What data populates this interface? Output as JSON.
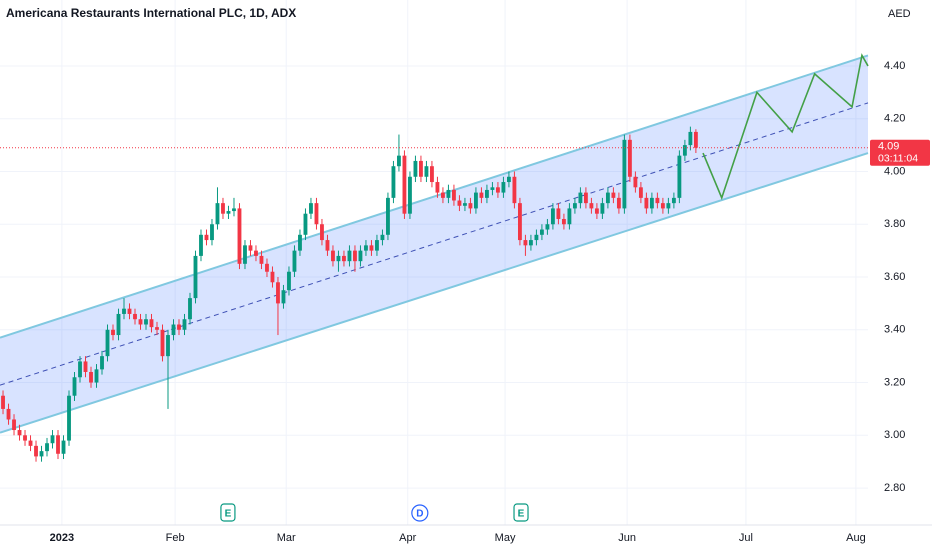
{
  "chart_data": {
    "type": "candlestick",
    "title": "Americana Restaurants International PLC, 1D, ADX",
    "currency": "AED",
    "up_color": "#089981",
    "down_color": "#f23645",
    "open": [
      3.15,
      3.1,
      3.06,
      3.02,
      3.0,
      2.98,
      2.96,
      2.92,
      2.94,
      2.97,
      3.0,
      2.93,
      2.98,
      3.15,
      3.22,
      3.28,
      3.24,
      3.2,
      3.25,
      3.3,
      3.4,
      3.38,
      3.46,
      3.48,
      3.46,
      3.44,
      3.42,
      3.44,
      3.41,
      3.4,
      3.3,
      3.38,
      3.42,
      3.4,
      3.44,
      3.52,
      3.68,
      3.76,
      3.74,
      3.8,
      3.88,
      3.84,
      3.85,
      3.86,
      3.65,
      3.72,
      3.7,
      3.68,
      3.65,
      3.62,
      3.58,
      3.5,
      3.55,
      3.62,
      3.7,
      3.76,
      3.84,
      3.88,
      3.8,
      3.74,
      3.7,
      3.66,
      3.68,
      3.66,
      3.7,
      3.66,
      3.7,
      3.72,
      3.7,
      3.74,
      3.76,
      3.9,
      4.02,
      4.06,
      3.84,
      3.98,
      4.04,
      3.98,
      4.02,
      3.96,
      3.92,
      3.9,
      3.93,
      3.89,
      3.87,
      3.88,
      3.86,
      3.92,
      3.9,
      3.93,
      3.94,
      3.92,
      3.96,
      3.98,
      3.88,
      3.74,
      3.72,
      3.74,
      3.76,
      3.78,
      3.8,
      3.86,
      3.82,
      3.8,
      3.86,
      3.88,
      3.92,
      3.88,
      3.86,
      3.84,
      3.88,
      3.92,
      3.9,
      3.86,
      4.12,
      3.98,
      3.94,
      3.9,
      3.86,
      3.9,
      3.88,
      3.86,
      3.88,
      3.9,
      4.06,
      4.1,
      4.15
    ],
    "high": [
      3.17,
      3.12,
      3.08,
      3.04,
      3.02,
      3.0,
      2.98,
      2.96,
      2.99,
      3.02,
      3.02,
      3.0,
      3.17,
      3.24,
      3.3,
      3.3,
      3.26,
      3.27,
      3.32,
      3.42,
      3.42,
      3.48,
      3.52,
      3.5,
      3.48,
      3.46,
      3.46,
      3.46,
      3.43,
      3.42,
      3.4,
      3.44,
      3.44,
      3.46,
      3.54,
      3.7,
      3.78,
      3.78,
      3.82,
      3.94,
      3.9,
      3.87,
      3.9,
      3.88,
      3.74,
      3.74,
      3.72,
      3.7,
      3.67,
      3.64,
      3.6,
      3.57,
      3.64,
      3.72,
      3.78,
      3.86,
      3.9,
      3.9,
      3.82,
      3.76,
      3.72,
      3.7,
      3.7,
      3.72,
      3.72,
      3.72,
      3.74,
      3.74,
      3.76,
      3.78,
      3.92,
      4.04,
      4.14,
      4.08,
      4.0,
      4.06,
      4.06,
      4.04,
      4.04,
      3.98,
      3.94,
      3.95,
      3.95,
      3.91,
      3.9,
      3.9,
      3.94,
      3.94,
      3.95,
      3.96,
      3.96,
      3.98,
      4.0,
      4.0,
      3.9,
      3.76,
      3.76,
      3.78,
      3.8,
      3.82,
      3.88,
      3.88,
      3.84,
      3.88,
      3.9,
      3.94,
      3.94,
      3.9,
      3.88,
      3.9,
      3.94,
      3.94,
      3.92,
      4.14,
      4.14,
      4.0,
      3.96,
      3.92,
      3.92,
      3.92,
      3.9,
      3.9,
      3.92,
      4.08,
      4.12,
      4.17,
      4.16
    ],
    "low": [
      3.08,
      3.04,
      3.0,
      2.98,
      2.96,
      2.94,
      2.9,
      2.9,
      2.92,
      2.95,
      2.91,
      2.91,
      2.96,
      3.13,
      3.2,
      3.22,
      3.18,
      3.18,
      3.23,
      3.28,
      3.36,
      3.36,
      3.44,
      3.44,
      3.42,
      3.4,
      3.4,
      3.39,
      3.38,
      3.28,
      3.1,
      3.36,
      3.38,
      3.38,
      3.42,
      3.5,
      3.66,
      3.72,
      3.72,
      3.78,
      3.82,
      3.82,
      3.83,
      3.63,
      3.63,
      3.68,
      3.66,
      3.63,
      3.6,
      3.56,
      3.38,
      3.48,
      3.53,
      3.6,
      3.68,
      3.74,
      3.82,
      3.78,
      3.72,
      3.68,
      3.64,
      3.62,
      3.64,
      3.64,
      3.62,
      3.64,
      3.68,
      3.68,
      3.68,
      3.72,
      3.74,
      3.88,
      4.0,
      3.82,
      3.82,
      3.96,
      3.96,
      3.96,
      3.94,
      3.9,
      3.88,
      3.88,
      3.87,
      3.85,
      3.85,
      3.84,
      3.84,
      3.88,
      3.88,
      3.91,
      3.9,
      3.9,
      3.94,
      3.86,
      3.72,
      3.68,
      3.7,
      3.72,
      3.74,
      3.76,
      3.78,
      3.8,
      3.78,
      3.78,
      3.84,
      3.86,
      3.86,
      3.84,
      3.82,
      3.82,
      3.86,
      3.88,
      3.84,
      3.84,
      3.96,
      3.92,
      3.88,
      3.84,
      3.84,
      3.86,
      3.84,
      3.84,
      3.86,
      3.88,
      4.04,
      4.08,
      4.07
    ],
    "close": [
      3.1,
      3.06,
      3.02,
      3.0,
      2.98,
      2.96,
      2.92,
      2.94,
      2.97,
      3.0,
      2.93,
      2.98,
      3.15,
      3.22,
      3.28,
      3.24,
      3.2,
      3.25,
      3.3,
      3.4,
      3.38,
      3.46,
      3.48,
      3.46,
      3.44,
      3.42,
      3.44,
      3.41,
      3.4,
      3.3,
      3.38,
      3.42,
      3.4,
      3.44,
      3.52,
      3.68,
      3.76,
      3.74,
      3.8,
      3.88,
      3.84,
      3.85,
      3.86,
      3.65,
      3.72,
      3.7,
      3.68,
      3.65,
      3.62,
      3.58,
      3.5,
      3.55,
      3.62,
      3.7,
      3.76,
      3.84,
      3.88,
      3.8,
      3.74,
      3.7,
      3.66,
      3.68,
      3.66,
      3.7,
      3.66,
      3.7,
      3.72,
      3.7,
      3.74,
      3.76,
      3.9,
      4.02,
      4.06,
      3.84,
      3.98,
      4.04,
      3.98,
      4.02,
      3.96,
      3.92,
      3.9,
      3.93,
      3.89,
      3.87,
      3.88,
      3.86,
      3.92,
      3.9,
      3.93,
      3.94,
      3.92,
      3.96,
      3.98,
      3.88,
      3.74,
      3.72,
      3.74,
      3.76,
      3.78,
      3.8,
      3.86,
      3.82,
      3.8,
      3.86,
      3.88,
      3.92,
      3.88,
      3.86,
      3.84,
      3.88,
      3.92,
      3.9,
      3.86,
      4.12,
      3.98,
      3.94,
      3.9,
      3.86,
      3.9,
      3.88,
      3.86,
      3.88,
      3.9,
      4.06,
      4.1,
      4.15,
      4.09
    ],
    "xlim": [
      -0.55,
      157.3
    ],
    "xticks": [
      {
        "value": 10.7,
        "label": "2023"
      },
      {
        "value": 31.3,
        "label": "Feb"
      },
      {
        "value": 51.5,
        "label": "Mar"
      },
      {
        "value": 73.6,
        "label": "Apr"
      },
      {
        "value": 91.3,
        "label": "May"
      },
      {
        "value": 113.5,
        "label": "Jun"
      },
      {
        "value": 135.1,
        "label": "Jul"
      },
      {
        "value": 155.1,
        "label": "Aug"
      }
    ],
    "ylim": [
      2.66,
      4.65
    ],
    "yticks": [
      {
        "value": 2.8,
        "label": "2.80"
      },
      {
        "value": 3.0,
        "label": "3.00"
      },
      {
        "value": 3.2,
        "label": "3.20"
      },
      {
        "value": 3.4,
        "label": "3.40"
      },
      {
        "value": 3.6,
        "label": "3.60"
      },
      {
        "value": 3.8,
        "label": "3.80"
      },
      {
        "value": 4.0,
        "label": "4.00"
      },
      {
        "value": 4.2,
        "label": "4.20"
      },
      {
        "value": 4.4,
        "label": "4.40"
      }
    ],
    "grid": true,
    "channel": {
      "color": "#80c8e0",
      "fill": "#2962ff",
      "upper": [
        [
          -0.55,
          3.37
        ],
        [
          157.3,
          4.44
        ]
      ],
      "middle": [
        [
          -0.55,
          3.19
        ],
        [
          157.3,
          4.26
        ]
      ],
      "lower": [
        [
          -0.55,
          3.01
        ],
        [
          157.3,
          4.07
        ]
      ]
    },
    "projection": {
      "color": "#43a047",
      "x": [
        127.3,
        130.7,
        137.1,
        143.5,
        147.6,
        154.4,
        156.2,
        157.3
      ],
      "y": [
        4.07,
        3.9,
        4.3,
        4.15,
        4.37,
        4.245,
        4.44,
        4.4
      ]
    },
    "last_price": {
      "value": 4.09,
      "label": "4.09",
      "countdown": "03:11:04",
      "color": "#f23645"
    },
    "events": [
      {
        "x": 40.9,
        "label": "E",
        "color": "#089981"
      },
      {
        "x": 75.8,
        "label": "D",
        "color": "#2962ff"
      },
      {
        "x": 94.2,
        "label": "E",
        "color": "#089981"
      }
    ]
  }
}
